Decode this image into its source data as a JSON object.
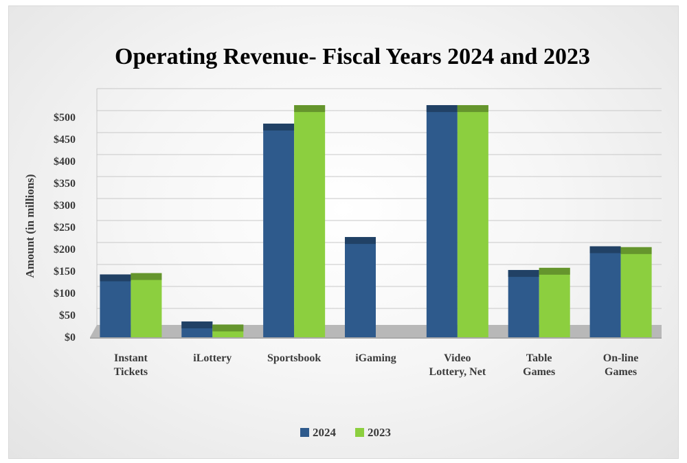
{
  "chart_data": {
    "type": "bar",
    "title": "Operating Revenue- Fiscal Years 2024 and 2023",
    "xlabel": "",
    "ylabel": "Amount (in millions)",
    "ylim": [
      0,
      550
    ],
    "yticks": [
      "$0",
      "$50",
      "$100",
      "$150",
      "$200",
      "$250",
      "$300",
      "$350",
      "$400",
      "$450",
      "$500"
    ],
    "categories": [
      [
        "Instant",
        "Tickets"
      ],
      [
        "iLottery"
      ],
      [
        "Sportsbook"
      ],
      [
        "iGaming"
      ],
      [
        "Video",
        "Lottery, Net"
      ],
      [
        "Table",
        "Games"
      ],
      [
        "On-line",
        "Games"
      ]
    ],
    "series": [
      {
        "name": "2024",
        "color": "#2e5a8c",
        "values": [
          143,
          36,
          486,
          228,
          528,
          153,
          207
        ]
      },
      {
        "name": "2023",
        "color": "#8ccf3f",
        "values": [
          146,
          29,
          528,
          0,
          528,
          158,
          205
        ]
      }
    ],
    "grid": true,
    "legend": "bottom-center"
  }
}
